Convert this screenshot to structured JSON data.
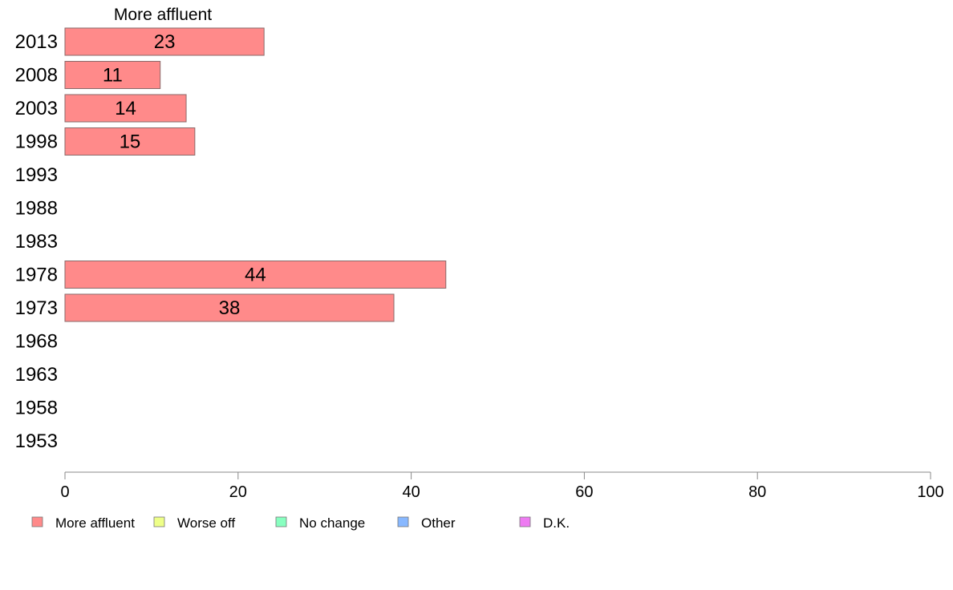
{
  "chart_data": {
    "type": "bar",
    "orientation": "horizontal",
    "title": "More affluent",
    "categories": [
      "2013",
      "2008",
      "2003",
      "1998",
      "1993",
      "1988",
      "1983",
      "1978",
      "1973",
      "1968",
      "1963",
      "1958",
      "1953"
    ],
    "series": [
      {
        "name": "More affluent",
        "values": [
          23,
          11,
          14,
          15,
          null,
          null,
          null,
          44,
          38,
          null,
          null,
          null,
          null
        ]
      }
    ],
    "data_labels": [
      "23",
      "11",
      "14",
      "15",
      "",
      "",
      "",
      "44",
      "38",
      "",
      "",
      "",
      ""
    ],
    "xlim": [
      0,
      100
    ],
    "xticks": [
      0,
      20,
      40,
      60,
      80,
      100
    ],
    "legend": [
      {
        "label": "More affluent",
        "color": "#ff8a8a"
      },
      {
        "label": "Worse off",
        "color": "#eeff88"
      },
      {
        "label": "No change",
        "color": "#88ffc0"
      },
      {
        "label": "Other",
        "color": "#88b8ff"
      },
      {
        "label": "D.K.",
        "color": "#ee7bf2"
      }
    ],
    "legend_position": "bottom-left",
    "grid": false
  },
  "colors": {
    "bar_fill": "#ff8a8a",
    "bar_stroke": "#8a6a6a",
    "axis": "#888888"
  }
}
